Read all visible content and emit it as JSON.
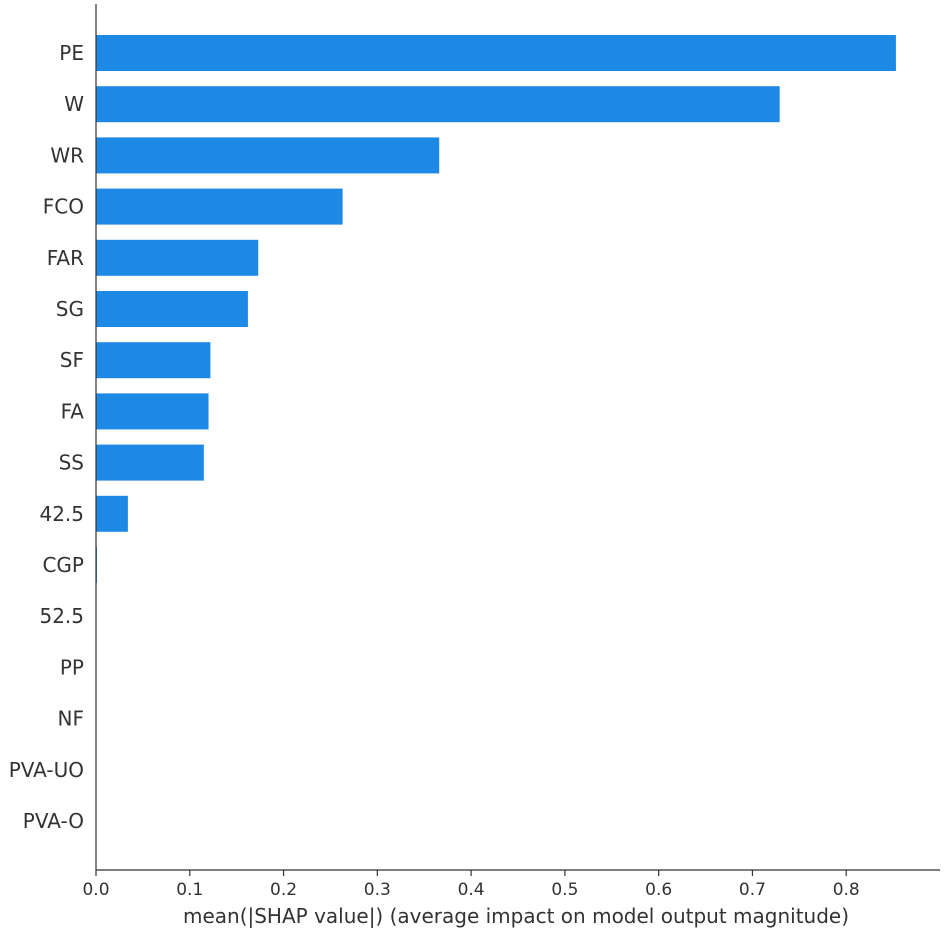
{
  "chart_data": {
    "type": "bar",
    "orientation": "horizontal",
    "categories": [
      "PE",
      "W",
      "WR",
      "FCO",
      "FAR",
      "SG",
      "SF",
      "FA",
      "SS",
      "42.5",
      "CGP",
      "52.5",
      "PP",
      "NF",
      "PVA-UO",
      "PVA-O"
    ],
    "values": [
      0.853,
      0.729,
      0.366,
      0.263,
      0.173,
      0.162,
      0.122,
      0.12,
      0.115,
      0.034,
      0.001,
      0,
      0,
      0,
      0,
      0
    ],
    "xlabel": "mean(|SHAP value|) (average impact on model output magnitude)",
    "ylabel": "",
    "title": "",
    "xlim": [
      0,
      0.9
    ],
    "xticks": [
      0.0,
      0.1,
      0.2,
      0.3,
      0.4,
      0.5,
      0.6,
      0.7,
      0.8
    ],
    "xtick_labels": [
      "0.0",
      "0.1",
      "0.2",
      "0.3",
      "0.4",
      "0.5",
      "0.6",
      "0.7",
      "0.8"
    ],
    "bar_color": "#1e88e5",
    "grid": false
  }
}
